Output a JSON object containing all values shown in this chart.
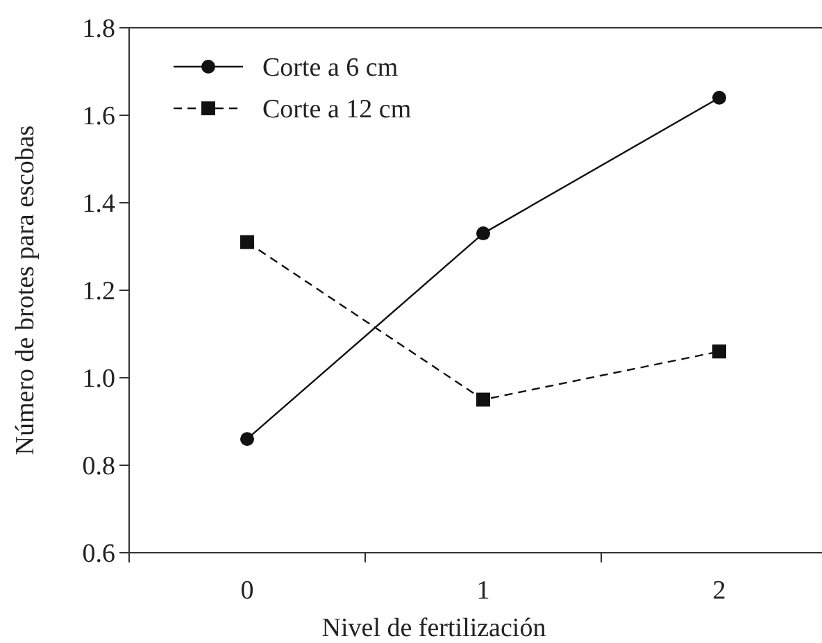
{
  "chart_data": {
    "type": "line",
    "xlabel": "Nivel de fertilización",
    "ylabel": "Número de brotes para escobas",
    "categories": [
      "0",
      "1",
      "2"
    ],
    "series": [
      {
        "name": "Corte a 6 cm",
        "color": "#111111",
        "values": [
          0.86,
          1.33,
          1.64
        ],
        "marker": "circle",
        "line_style": "solid"
      },
      {
        "name": "Corte a 12 cm",
        "color": "#111111",
        "values": [
          1.31,
          0.95,
          1.06
        ],
        "marker": "square",
        "line_style": "dashed"
      }
    ],
    "ylim": [
      0.6,
      1.8
    ],
    "yticks": [
      {
        "value": 0.6,
        "label": "0.6"
      },
      {
        "value": 0.8,
        "label": "0.8"
      },
      {
        "value": 1.0,
        "label": "1.0"
      },
      {
        "value": 1.2,
        "label": "1.2"
      },
      {
        "value": 1.4,
        "label": "1.4"
      },
      {
        "value": 1.6,
        "label": "1.6"
      },
      {
        "value": 1.8,
        "label": "1.8"
      }
    ],
    "grid": false,
    "legend": "top left"
  }
}
